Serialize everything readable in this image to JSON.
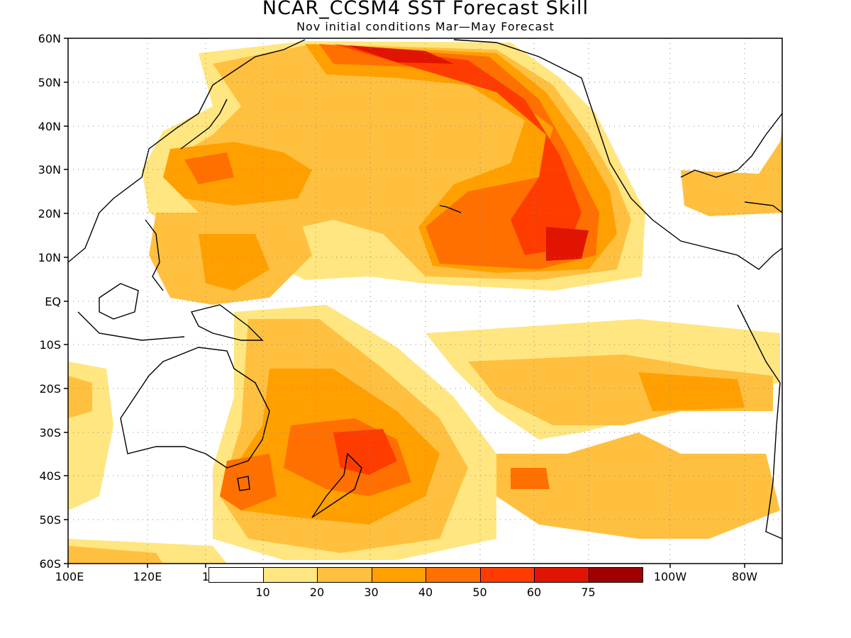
{
  "title": "NCAR_CCSM4 SST Forecast Skill",
  "subtitle": "Nov initial conditions  Mar—May Forecast",
  "lat_labels": [
    "60N",
    "50N",
    "40N",
    "30N",
    "20N",
    "10N",
    "EQ",
    "10S",
    "20S",
    "30S",
    "40S",
    "50S",
    "60S"
  ],
  "lon_labels": [
    "100E",
    "120E",
    "1",
    "100W",
    "80W"
  ],
  "colorbar": {
    "colors": [
      "#ffffff",
      "#ffe680",
      "#ffc040",
      "#ffa000",
      "#ff7000",
      "#ff3c00",
      "#e01400",
      "#a00000"
    ],
    "tick_labels": [
      "10",
      "20",
      "30",
      "40",
      "50",
      "60",
      "75"
    ]
  },
  "colors": {
    "coast": "#000000",
    "grid": "#888888"
  }
}
